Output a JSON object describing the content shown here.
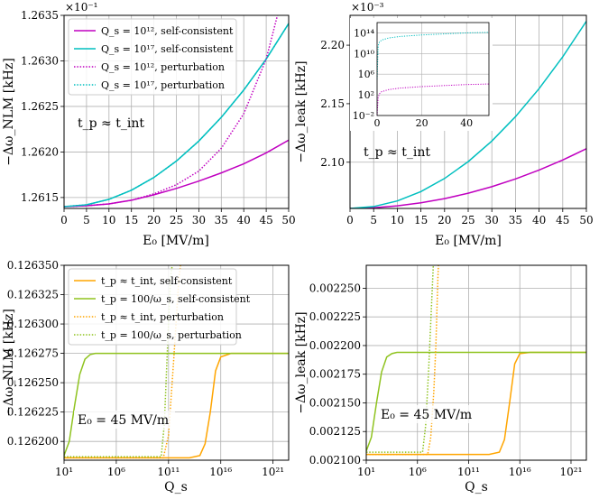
{
  "chart_data": [
    {
      "id": "a",
      "type": "line",
      "xlabel": "E₀ [MV/m]",
      "ylabel": "−Δω_NLM [kHz]",
      "exponent_label": "×10⁻¹",
      "xlim": [
        0,
        50
      ],
      "ylim": [
        1.26138,
        1.2635
      ],
      "xticks": [
        0,
        5,
        10,
        15,
        20,
        25,
        30,
        35,
        40,
        45,
        50
      ],
      "xticklabels": [
        "0",
        "5",
        "10",
        "15",
        "20",
        "25",
        "30",
        "35",
        "40",
        "45",
        "50"
      ],
      "yticks": [
        1.2615,
        1.262,
        1.2625,
        1.263,
        1.2635
      ],
      "yticklabels": [
        "1.2615",
        "1.2620",
        "1.2625",
        "1.2630",
        "1.2635"
      ],
      "annotation": "t_p ≈ t_int",
      "legend_position": "top-left",
      "series": [
        {
          "name": "Q_s = 10¹², self-consistent",
          "color": "#c000c0",
          "dash": "solid",
          "x": [
            0,
            5,
            10,
            15,
            20,
            25,
            30,
            35,
            40,
            45,
            50
          ],
          "y": [
            1.2614,
            1.26141,
            1.26143,
            1.26147,
            1.26153,
            1.2616,
            1.26168,
            1.26177,
            1.26187,
            1.26199,
            1.26213
          ]
        },
        {
          "name": "Q_s = 10¹⁷, self-consistent",
          "color": "#00bfbf",
          "dash": "solid",
          "x": [
            0,
            5,
            10,
            15,
            20,
            25,
            30,
            35,
            40,
            45,
            50
          ],
          "y": [
            1.2614,
            1.26142,
            1.26148,
            1.26158,
            1.26172,
            1.2619,
            1.26212,
            1.26238,
            1.26268,
            1.26302,
            1.26341
          ]
        },
        {
          "name": "Q_s = 10¹², perturbation",
          "color": "#c000c0",
          "dash": "dotted",
          "x": [
            0,
            5,
            10,
            15,
            20,
            25,
            30,
            35,
            40,
            45,
            50
          ],
          "y": [
            1.2614,
            1.26141,
            1.26143,
            1.26147,
            1.26154,
            1.26164,
            1.26179,
            1.26204,
            1.26242,
            1.26302,
            1.26398
          ]
        },
        {
          "name": "Q_s = 10¹⁷, perturbation",
          "color": "#00bfbf",
          "dash": "dotted",
          "x": [
            0,
            5,
            10,
            15,
            20,
            25,
            30,
            35,
            40,
            45,
            50
          ],
          "y": [
            1.2614,
            1.26142,
            1.26148,
            1.26158,
            1.26172,
            1.2619,
            1.26212,
            1.26238,
            1.26268,
            1.26302,
            1.26341
          ]
        }
      ]
    },
    {
      "id": "b",
      "type": "line",
      "xlabel": "E₀ [MV/m]",
      "ylabel": "−Δω_leak [kHz]",
      "exponent_label": "×10⁻³",
      "xlim": [
        0,
        50
      ],
      "ylim": [
        2.0605,
        2.2255
      ],
      "xticks": [
        0,
        5,
        10,
        15,
        20,
        25,
        30,
        35,
        40,
        45,
        50
      ],
      "xticklabels": [
        "0",
        "5",
        "10",
        "15",
        "20",
        "25",
        "30",
        "35",
        "40",
        "45",
        "50"
      ],
      "yticks": [
        2.1,
        2.15,
        2.2
      ],
      "yticklabels": [
        "2.10",
        "2.15",
        "2.20"
      ],
      "annotation": "t_p ≈ t_int",
      "series": [
        {
          "name": "Q_s = 10¹², self-consistent",
          "color": "#c000c0",
          "dash": "solid",
          "x": [
            0,
            5,
            10,
            15,
            20,
            25,
            30,
            35,
            40,
            45,
            50
          ],
          "y": [
            2.0605,
            2.0611,
            2.0627,
            2.0653,
            2.0689,
            2.0735,
            2.0791,
            2.0857,
            2.0933,
            2.1019,
            2.1115
          ]
        },
        {
          "name": "Q_s = 10¹⁷, self-consistent",
          "color": "#00bfbf",
          "dash": "solid",
          "x": [
            0,
            5,
            10,
            15,
            20,
            25,
            30,
            35,
            40,
            45,
            50
          ],
          "y": [
            2.0605,
            2.0621,
            2.0669,
            2.0749,
            2.0861,
            2.1005,
            2.1181,
            2.1389,
            2.1629,
            2.1901,
            2.2205
          ]
        }
      ],
      "inset": {
        "xlim": [
          0,
          50
        ],
        "xticks": [
          0,
          20,
          40
        ],
        "xticklabels": [
          "0",
          "20",
          "40"
        ],
        "ylim_log10": [
          -2,
          16
        ],
        "yticks_log10": [
          -2,
          2,
          6,
          10,
          14
        ],
        "yticklabels": [
          "10⁻²",
          "10²",
          "10⁶",
          "10¹⁰",
          "10¹⁴"
        ],
        "series": [
          {
            "name": "Q_s = 10¹²",
            "color": "#c000c0",
            "dash": "dotted",
            "x": [
              0,
              0.5,
              1,
              2,
              5,
              10,
              20,
              30,
              40,
              50
            ],
            "log10y": [
              -2,
              1.5,
              2.2,
              2.6,
              3,
              3.3,
              3.6,
              3.8,
              4,
              4.1
            ]
          },
          {
            "name": "Q_s = 10¹⁷",
            "color": "#00bfbf",
            "dash": "dotted",
            "x": [
              0,
              0.5,
              1,
              2,
              5,
              10,
              20,
              30,
              40,
              50
            ],
            "log10y": [
              5,
              11.5,
              12.2,
              12.6,
              13,
              13.3,
              13.6,
              13.8,
              14,
              14.1
            ]
          }
        ]
      }
    },
    {
      "id": "c",
      "type": "line",
      "xlabel": "Q_s",
      "ylabel": "−Δω_NLM [kHz]",
      "xscale": "log",
      "xlim_log10": [
        1,
        22.5
      ],
      "ylim": [
        0.126184,
        0.12635
      ],
      "xticks_log10": [
        1,
        6,
        11,
        16,
        21
      ],
      "xticklabels": [
        "10¹",
        "10⁶",
        "10¹¹",
        "10¹⁶",
        "10²¹"
      ],
      "yticks": [
        0.1262,
        0.126225,
        0.12625,
        0.126275,
        0.1263,
        0.126325,
        0.12635
      ],
      "yticklabels": [
        "0.126200",
        "0.126225",
        "0.126250",
        "0.126275",
        "0.126300",
        "0.126325",
        "0.126350"
      ],
      "annotation": "E₀ = 45 MV/m",
      "legend_position": "top-left",
      "series": [
        {
          "name": "t_p ≈ t_int, self-consistent",
          "color": "#ffa500",
          "dash": "solid",
          "log10x": [
            1,
            13,
            14,
            14.5,
            15,
            15.5,
            16,
            17,
            19,
            22.5
          ],
          "y": [
            0.126186,
            0.126186,
            0.126188,
            0.126198,
            0.126225,
            0.12626,
            0.126272,
            0.126275,
            0.126275,
            0.126275
          ]
        },
        {
          "name": "t_p = 100/ω_s, self-consistent",
          "color": "#8fc31f",
          "dash": "solid",
          "log10x": [
            1,
            1.5,
            2,
            2.5,
            3,
            3.5,
            4,
            5,
            10,
            22.5
          ],
          "y": [
            0.126188,
            0.1262,
            0.12623,
            0.126257,
            0.12627,
            0.126274,
            0.126275,
            0.126275,
            0.126275,
            0.126275
          ]
        },
        {
          "name": "t_p ≈ t_int, perturbation",
          "color": "#ffa500",
          "dash": "dotted",
          "log10x": [
            1,
            10.5,
            11,
            11.5,
            12,
            12.3
          ],
          "y": [
            0.126186,
            0.126186,
            0.126205,
            0.12627,
            0.12634,
            0.12636
          ]
        },
        {
          "name": "t_p = 100/ω_s, perturbation",
          "color": "#8fc31f",
          "dash": "dotted",
          "log10x": [
            1,
            10.3,
            10.6,
            10.9,
            11.2,
            11.5
          ],
          "y": [
            0.126187,
            0.126187,
            0.126215,
            0.12628,
            0.12634,
            0.12636
          ]
        }
      ]
    },
    {
      "id": "d",
      "type": "line",
      "xlabel": "Q_s",
      "ylabel": "−Δω_leak [kHz]",
      "xscale": "log",
      "xlim_log10": [
        1,
        22.5
      ],
      "ylim": [
        0.0021,
        0.00227
      ],
      "xticks_log10": [
        1,
        6,
        11,
        16,
        21
      ],
      "xticklabels": [
        "10¹",
        "10⁶",
        "10¹¹",
        "10¹⁶",
        "10²¹"
      ],
      "yticks": [
        0.0021,
        0.002125,
        0.00215,
        0.002175,
        0.0022,
        0.002225,
        0.00225
      ],
      "yticklabels": [
        "0.002100",
        "0.002125",
        "0.002150",
        "0.002175",
        "0.002200",
        "0.002225",
        "0.002250"
      ],
      "annotation": "E₀ = 45 MV/m",
      "series": [
        {
          "name": "t_p ≈ t_int, self-consistent",
          "color": "#ffa500",
          "dash": "solid",
          "log10x": [
            1,
            13,
            14,
            14.5,
            15,
            15.5,
            16,
            17,
            19,
            22.5
          ],
          "y": [
            0.002105,
            0.002105,
            0.002107,
            0.002118,
            0.00215,
            0.002184,
            0.002193,
            0.002194,
            0.002194,
            0.002194
          ]
        },
        {
          "name": "t_p = 100/ω_s, self-consistent",
          "color": "#8fc31f",
          "dash": "solid",
          "log10x": [
            1,
            1.5,
            2,
            2.5,
            3,
            3.5,
            4,
            5,
            10,
            22.5
          ],
          "y": [
            0.002108,
            0.00212,
            0.00215,
            0.002177,
            0.00219,
            0.002193,
            0.002194,
            0.002194,
            0.002194,
            0.002194
          ]
        },
        {
          "name": "t_p ≈ t_int, perturbation",
          "color": "#ffa500",
          "dash": "dotted",
          "log10x": [
            1,
            7,
            7.3,
            7.6,
            7.8,
            8,
            8.1
          ],
          "y": [
            0.002105,
            0.002105,
            0.00212,
            0.00216,
            0.0022,
            0.00226,
            0.00228
          ]
        },
        {
          "name": "t_p = 100/ω_s, perturbation",
          "color": "#8fc31f",
          "dash": "dotted",
          "log10x": [
            1,
            6.5,
            6.8,
            7.1,
            7.4,
            7.6
          ],
          "y": [
            0.002107,
            0.002107,
            0.00213,
            0.00218,
            0.00224,
            0.00228
          ]
        }
      ]
    }
  ]
}
